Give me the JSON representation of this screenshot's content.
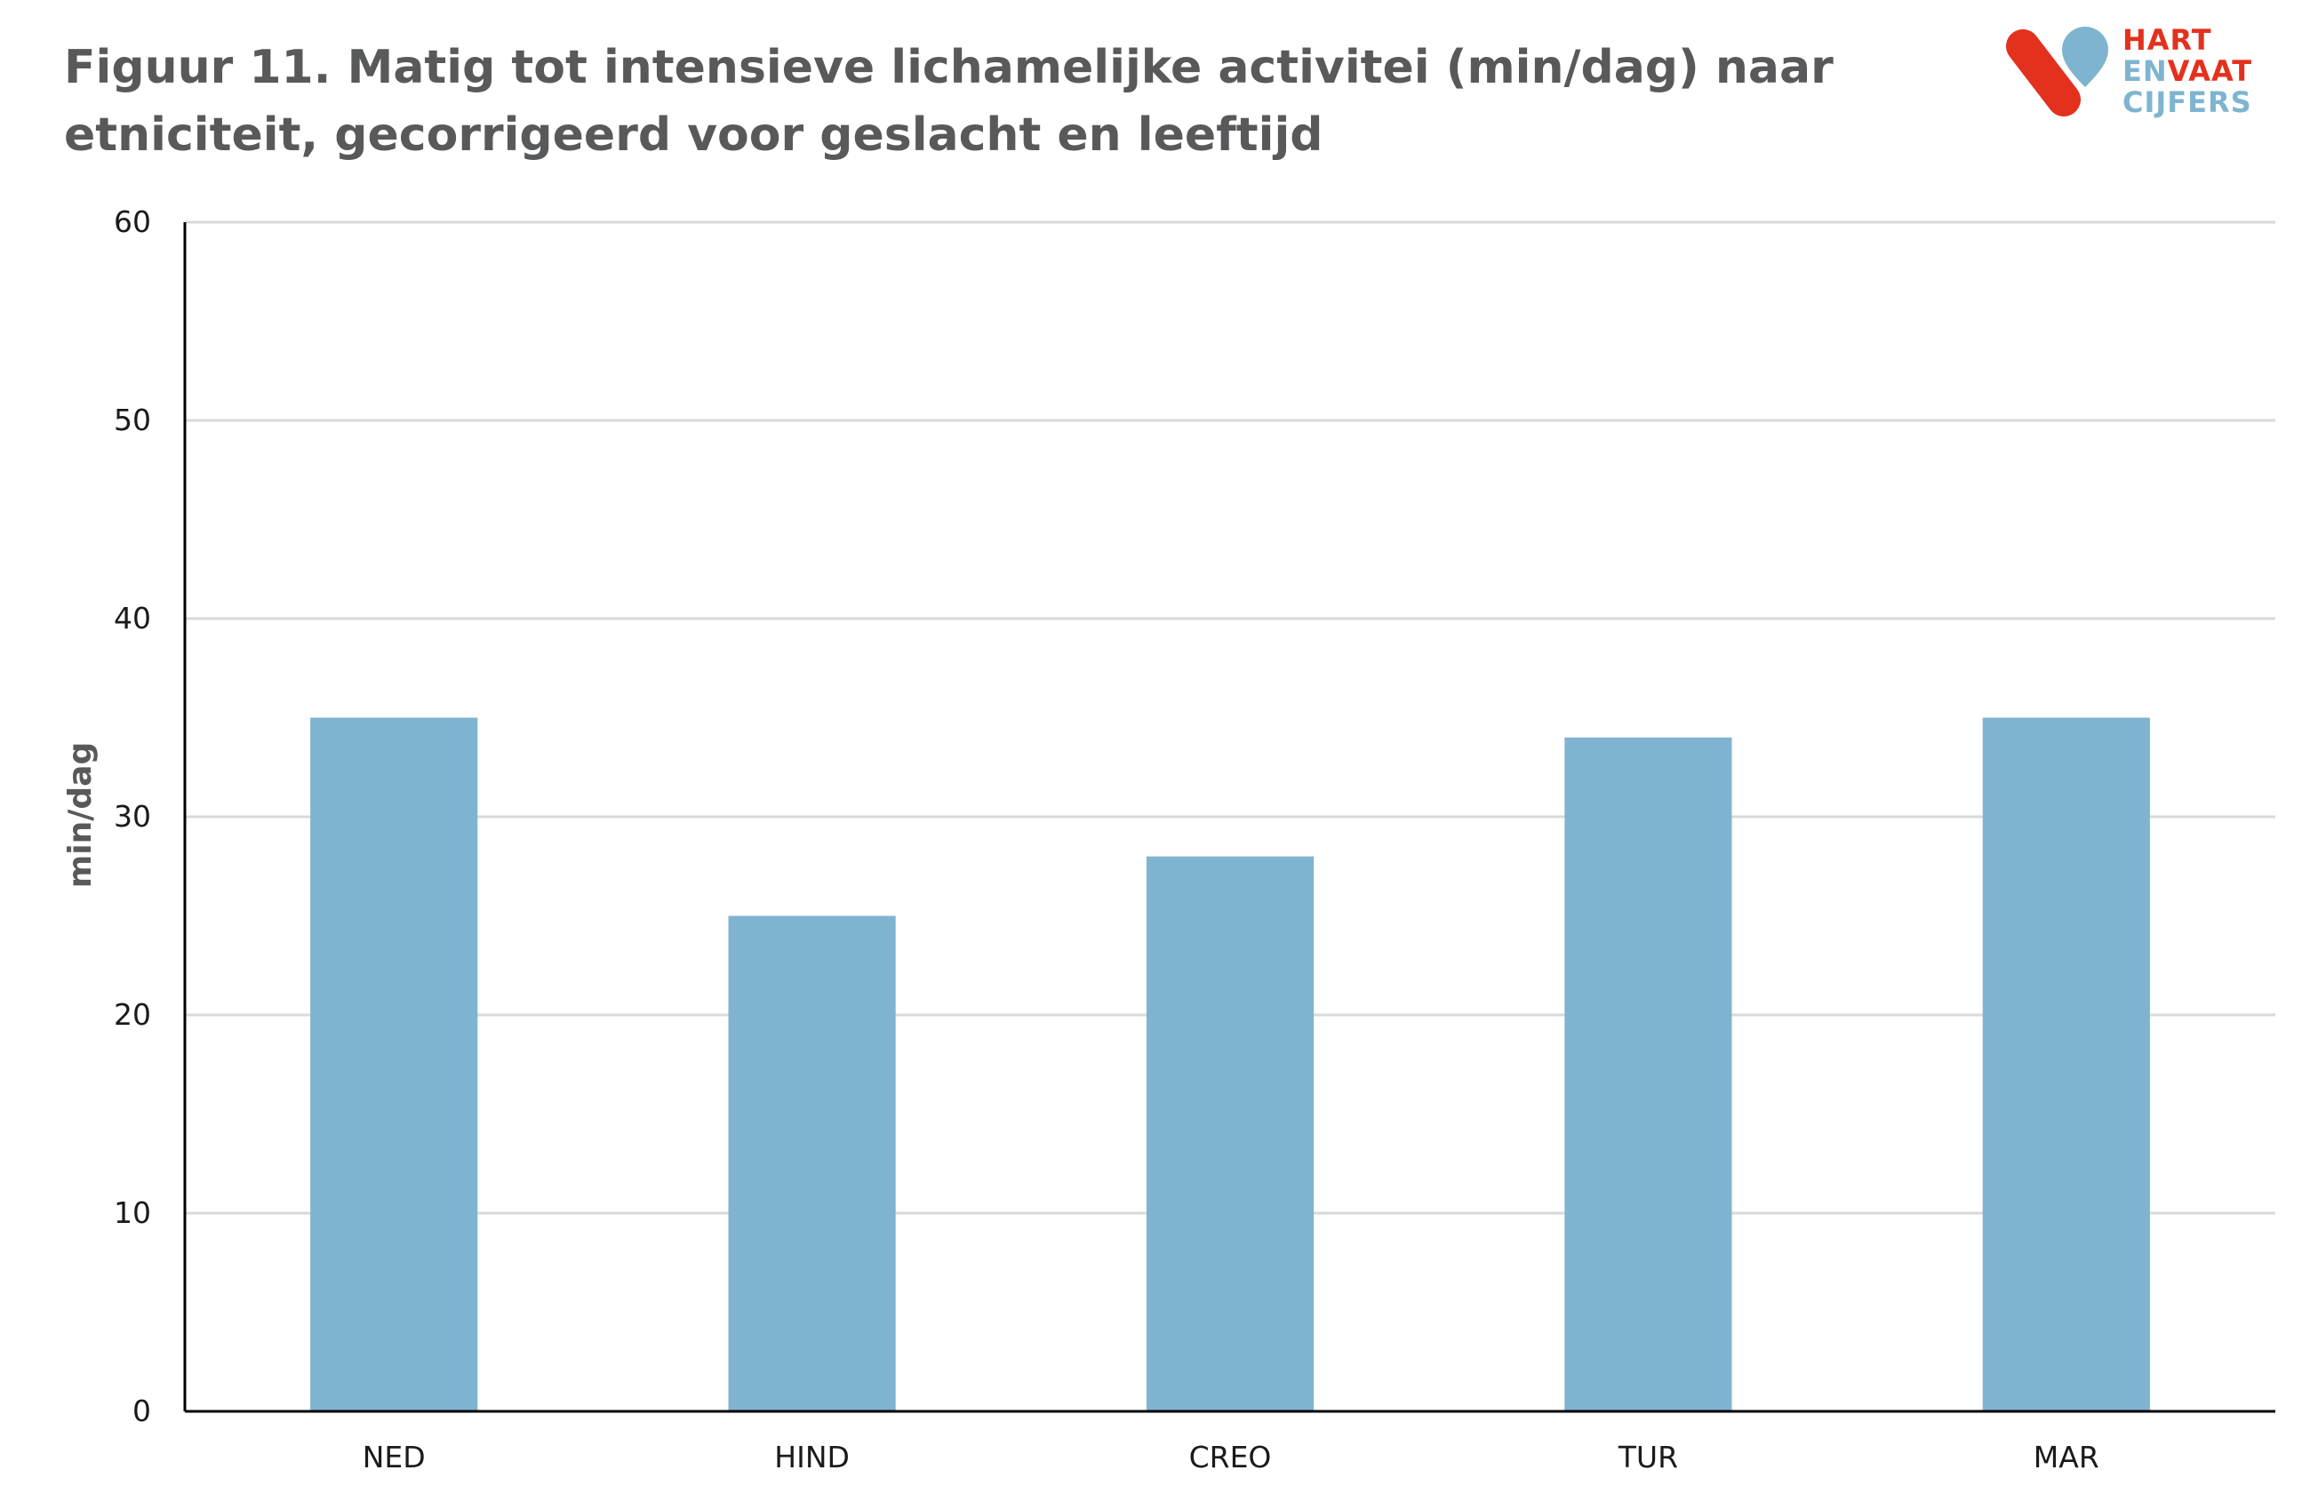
{
  "title_line1": "Figuur 11. Matig tot intensieve lichamelijke activitei (min/dag) naar",
  "title_line2": "etniciteit, gecorrigeerd voor geslacht en leeftijd",
  "logo": {
    "word1": "HART",
    "word2a": "EN",
    "word2b": "VAAT",
    "word3": "CIJFERS",
    "colors": {
      "red": "#e3311d",
      "blue": "#7eb4d0"
    }
  },
  "colors": {
    "bar": "#7fb4d1",
    "grid": "#d9d9d9",
    "axis": "#000000",
    "title": "#58595b"
  },
  "chart_data": {
    "type": "bar",
    "categories": [
      "NED",
      "HIND",
      "CREO",
      "TUR",
      "MAR"
    ],
    "values": [
      35,
      25,
      28,
      34,
      35
    ],
    "ylabel": "min/dag",
    "xlabel": "",
    "ylim": [
      0,
      60
    ],
    "yticks": [
      0,
      10,
      20,
      30,
      40,
      50,
      60
    ],
    "grid": true
  }
}
